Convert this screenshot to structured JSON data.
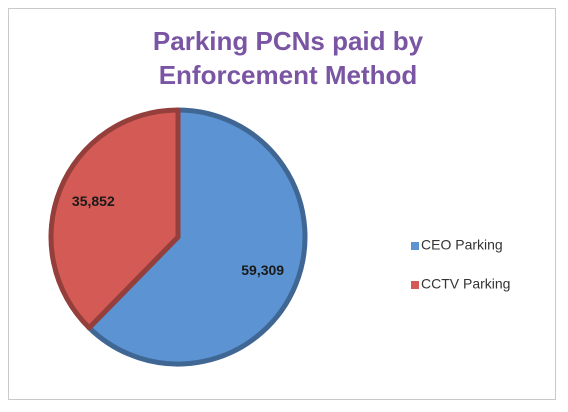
{
  "chart_data": {
    "type": "pie",
    "title": "Parking PCNs paid by Enforcement Method",
    "categories": [
      "CEO Parking",
      "CCTV Parking"
    ],
    "values": [
      59309,
      35852
    ],
    "value_labels": [
      "59,309",
      "35,852"
    ],
    "colors": [
      "#5b93d3",
      "#d45a55"
    ],
    "legend": "right"
  }
}
